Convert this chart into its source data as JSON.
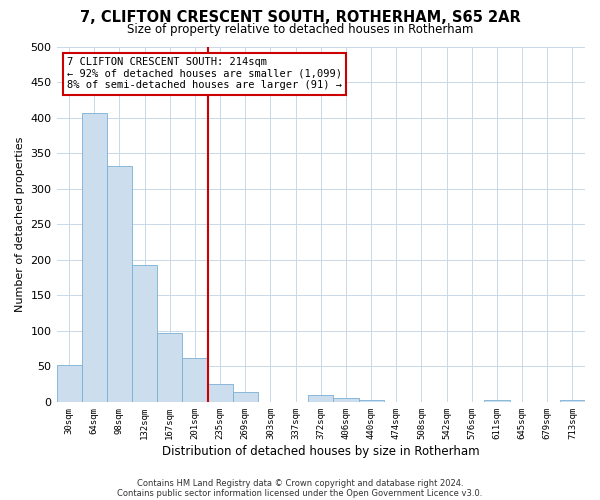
{
  "title": "7, CLIFTON CRESCENT SOUTH, ROTHERHAM, S65 2AR",
  "subtitle": "Size of property relative to detached houses in Rotherham",
  "xlabel": "Distribution of detached houses by size in Rotherham",
  "ylabel": "Number of detached properties",
  "bar_labels": [
    "30sqm",
    "64sqm",
    "98sqm",
    "132sqm",
    "167sqm",
    "201sqm",
    "235sqm",
    "269sqm",
    "303sqm",
    "337sqm",
    "372sqm",
    "406sqm",
    "440sqm",
    "474sqm",
    "508sqm",
    "542sqm",
    "576sqm",
    "611sqm",
    "645sqm",
    "679sqm",
    "713sqm"
  ],
  "bar_values": [
    52,
    406,
    332,
    193,
    97,
    62,
    25,
    14,
    0,
    0,
    10,
    5,
    2,
    0,
    0,
    0,
    0,
    3,
    0,
    0,
    2
  ],
  "bar_color": "#ccdded",
  "bar_edge_color": "#7aafd4",
  "vline_x": 5.5,
  "vline_color": "#cc0000",
  "ylim": [
    0,
    500
  ],
  "yticks": [
    0,
    50,
    100,
    150,
    200,
    250,
    300,
    350,
    400,
    450,
    500
  ],
  "annotation_title": "7 CLIFTON CRESCENT SOUTH: 214sqm",
  "annotation_line1": "← 92% of detached houses are smaller (1,099)",
  "annotation_line2": "8% of semi-detached houses are larger (91) →",
  "annotation_box_color": "#cc0000",
  "footer_line1": "Contains HM Land Registry data © Crown copyright and database right 2024.",
  "footer_line2": "Contains public sector information licensed under the Open Government Licence v3.0.",
  "background_color": "#ffffff",
  "grid_color": "#c8d8e8"
}
